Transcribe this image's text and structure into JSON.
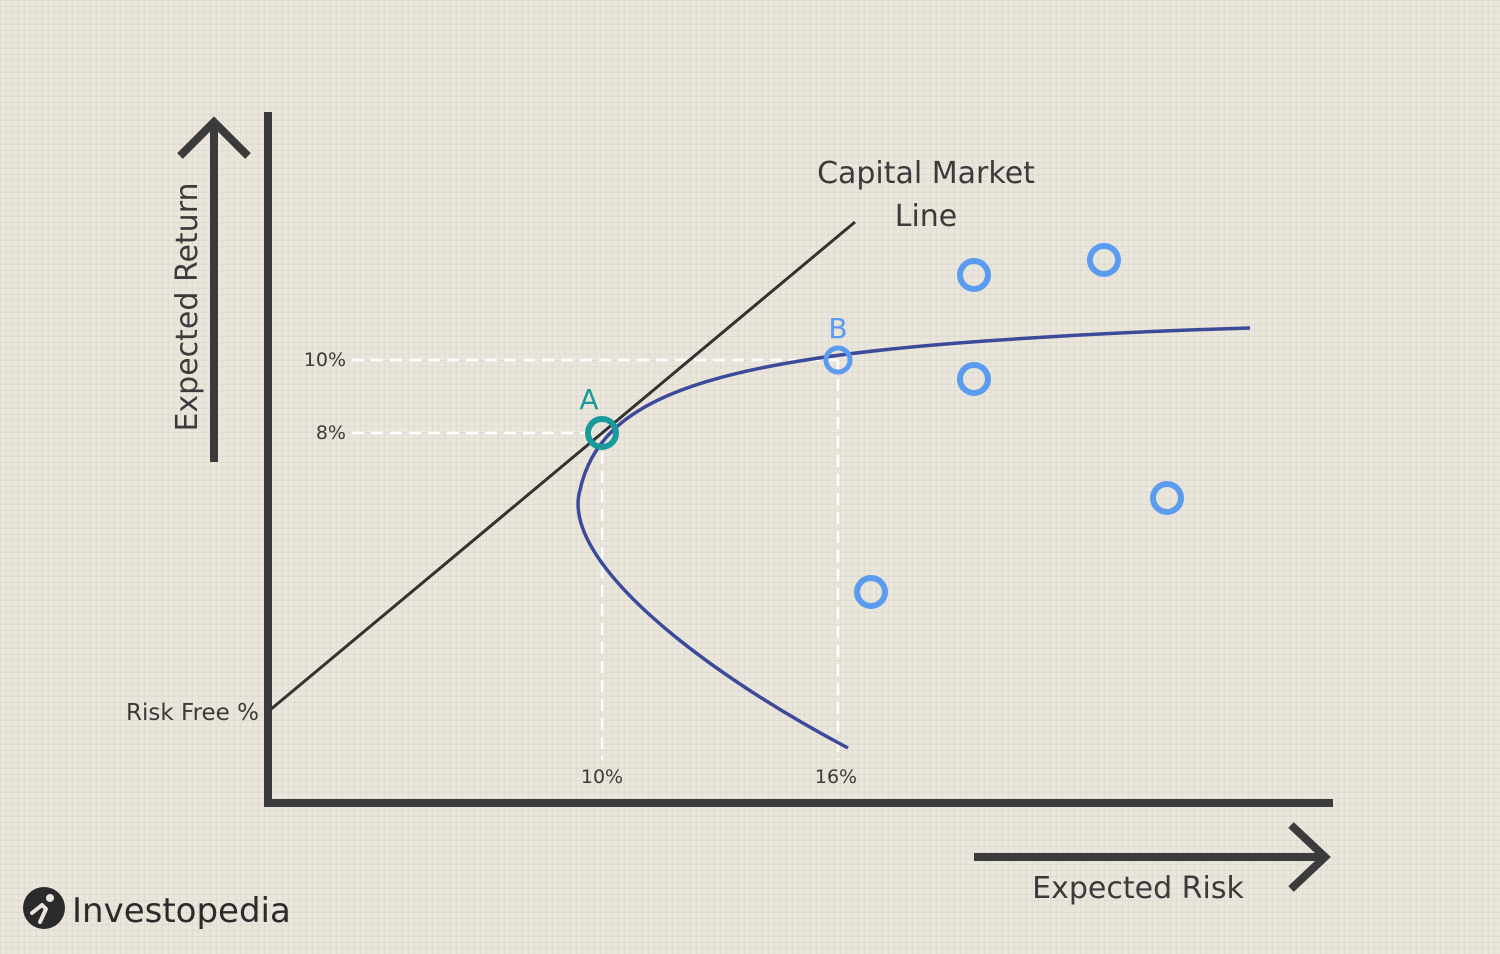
{
  "colors": {
    "background": "#ebe6dc",
    "axis": "#3b3b3b",
    "cml_line": "#333333",
    "frontier": "#3d4a9a",
    "guide_lines": "#ffffff",
    "point_a": "#1a9a9a",
    "point_b": "#5b9bf0",
    "portfolio": "#5b9bf0",
    "logo": "#2b2b2b"
  },
  "labels": {
    "y_axis": "Expected Return",
    "x_axis": "Expected Risk",
    "risk_free": "Risk Free %",
    "cml_line1": "Capital Market",
    "cml_line2": "Line",
    "point_a": "A",
    "point_b": "B",
    "return_8": "8%",
    "return_10": "10%",
    "risk_10": "10%",
    "risk_16": "16%"
  },
  "brand": {
    "name": "Investopedia",
    "logo_icon": "investopedia-logo-icon"
  },
  "chart_data": {
    "type": "scatter",
    "title": "",
    "xlabel": "Expected Risk",
    "ylabel": "Expected Return",
    "risk_free_label": "Risk Free %",
    "capital_market_line": {
      "label": "Capital Market Line",
      "starts_at": "Risk Free %",
      "tangent_to_frontier_at": "A"
    },
    "efficient_frontier": {
      "shape": "parabola",
      "vertex_near_risk": 9.5
    },
    "marked_points": [
      {
        "label": "A",
        "risk": 10,
        "return": 8
      },
      {
        "label": "B",
        "risk": 16,
        "return": 10
      }
    ],
    "other_portfolios": [
      {
        "risk": 19.3,
        "return": 12.5
      },
      {
        "risk": 22.6,
        "return": 12.9
      },
      {
        "risk": 19.3,
        "return": 9.6
      },
      {
        "risk": 24.3,
        "return": 6.3
      },
      {
        "risk": 16.9,
        "return": 3.7
      }
    ],
    "x_ticks": [
      "10%",
      "16%"
    ],
    "y_ticks": [
      "8%",
      "10%"
    ],
    "grid": false,
    "legend": "none"
  }
}
